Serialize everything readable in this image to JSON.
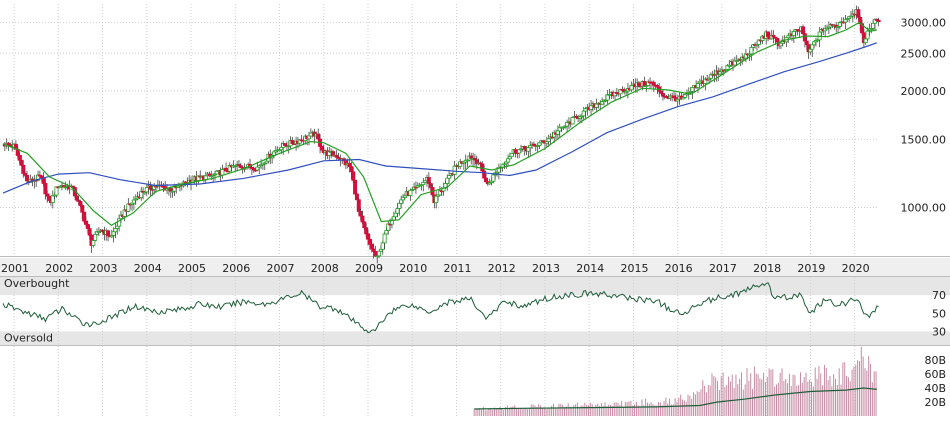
{
  "chart_data": [
    {
      "type": "candlestick",
      "panel": "price",
      "scale": "log",
      "ylim": [
        750,
        3350
      ],
      "y_ticks": [
        {
          "value": 1000,
          "label": "1000.00"
        },
        {
          "value": 1500,
          "label": "1500.00"
        },
        {
          "value": 2000,
          "label": "2000.00"
        },
        {
          "value": 2500,
          "label": "2500.00"
        },
        {
          "value": 3000,
          "label": "3000.00"
        }
      ],
      "x_range": [
        2000.75,
        2020.55
      ],
      "x_ticks": [
        {
          "value": 2001,
          "label": "2001"
        },
        {
          "value": 2002,
          "label": "2002"
        },
        {
          "value": 2003,
          "label": "2003"
        },
        {
          "value": 2004,
          "label": "2004"
        },
        {
          "value": 2005,
          "label": "2005"
        },
        {
          "value": 2006,
          "label": "2006"
        },
        {
          "value": 2007,
          "label": "2007"
        },
        {
          "value": 2008,
          "label": "2008"
        },
        {
          "value": 2009,
          "label": "2009"
        },
        {
          "value": 2010,
          "label": "2010"
        },
        {
          "value": 2011,
          "label": "2011"
        },
        {
          "value": 2012,
          "label": "2012"
        },
        {
          "value": 2013,
          "label": "2013"
        },
        {
          "value": 2014,
          "label": "2014"
        },
        {
          "value": 2015,
          "label": "2015"
        },
        {
          "value": 2016,
          "label": "2016"
        },
        {
          "value": 2017,
          "label": "2017"
        },
        {
          "value": 2018,
          "label": "2018"
        },
        {
          "value": 2019,
          "label": "2019"
        },
        {
          "value": 2020,
          "label": "2020"
        }
      ],
      "close_path": [
        [
          2000.75,
          1460
        ],
        [
          2001.0,
          1440
        ],
        [
          2001.3,
          1160
        ],
        [
          2001.6,
          1200
        ],
        [
          2001.8,
          1020
        ],
        [
          2002.0,
          1140
        ],
        [
          2002.3,
          1130
        ],
        [
          2002.5,
          1000
        ],
        [
          2002.75,
          810
        ],
        [
          2002.95,
          880
        ],
        [
          2003.2,
          840
        ],
        [
          2003.5,
          980
        ],
        [
          2003.9,
          1100
        ],
        [
          2004.2,
          1140
        ],
        [
          2004.6,
          1110
        ],
        [
          2005.0,
          1180
        ],
        [
          2005.5,
          1210
        ],
        [
          2006.0,
          1280
        ],
        [
          2006.5,
          1270
        ],
        [
          2007.0,
          1430
        ],
        [
          2007.5,
          1500
        ],
        [
          2007.8,
          1550
        ],
        [
          2008.0,
          1390
        ],
        [
          2008.3,
          1360
        ],
        [
          2008.6,
          1270
        ],
        [
          2008.8,
          960
        ],
        [
          2009.0,
          820
        ],
        [
          2009.2,
          735
        ],
        [
          2009.5,
          920
        ],
        [
          2009.8,
          1070
        ],
        [
          2010.1,
          1120
        ],
        [
          2010.35,
          1190
        ],
        [
          2010.5,
          1040
        ],
        [
          2010.75,
          1150
        ],
        [
          2011.0,
          1280
        ],
        [
          2011.3,
          1360
        ],
        [
          2011.5,
          1310
        ],
        [
          2011.7,
          1140
        ],
        [
          2011.95,
          1260
        ],
        [
          2012.3,
          1400
        ],
        [
          2012.6,
          1420
        ],
        [
          2013.0,
          1480
        ],
        [
          2013.5,
          1640
        ],
        [
          2014.0,
          1800
        ],
        [
          2014.5,
          1950
        ],
        [
          2015.0,
          2060
        ],
        [
          2015.4,
          2100
        ],
        [
          2015.7,
          1940
        ],
        [
          2016.1,
          1900
        ],
        [
          2016.5,
          2090
        ],
        [
          2017.0,
          2270
        ],
        [
          2017.5,
          2440
        ],
        [
          2018.0,
          2800
        ],
        [
          2018.3,
          2650
        ],
        [
          2018.8,
          2900
        ],
        [
          2018.95,
          2500
        ],
        [
          2019.3,
          2900
        ],
        [
          2019.6,
          2950
        ],
        [
          2020.05,
          3230
        ],
        [
          2020.15,
          2950
        ],
        [
          2020.22,
          2580
        ],
        [
          2020.32,
          2900
        ],
        [
          2020.5,
          3050
        ]
      ],
      "ma_fast_path": [
        [
          2000.75,
          1460
        ],
        [
          2001.3,
          1380
        ],
        [
          2001.8,
          1200
        ],
        [
          2002.3,
          1130
        ],
        [
          2002.8,
          980
        ],
        [
          2003.2,
          900
        ],
        [
          2003.7,
          970
        ],
        [
          2004.2,
          1100
        ],
        [
          2004.8,
          1150
        ],
        [
          2005.5,
          1190
        ],
        [
          2006.2,
          1260
        ],
        [
          2007.0,
          1380
        ],
        [
          2007.7,
          1480
        ],
        [
          2008.0,
          1470
        ],
        [
          2008.5,
          1380
        ],
        [
          2008.9,
          1200
        ],
        [
          2009.3,
          920
        ],
        [
          2009.7,
          930
        ],
        [
          2010.2,
          1080
        ],
        [
          2010.8,
          1130
        ],
        [
          2011.3,
          1280
        ],
        [
          2011.8,
          1250
        ],
        [
          2012.3,
          1290
        ],
        [
          2013.0,
          1420
        ],
        [
          2013.8,
          1660
        ],
        [
          2014.5,
          1870
        ],
        [
          2015.2,
          2030
        ],
        [
          2015.8,
          2010
        ],
        [
          2016.3,
          1960
        ],
        [
          2017.0,
          2200
        ],
        [
          2017.8,
          2520
        ],
        [
          2018.4,
          2700
        ],
        [
          2018.9,
          2770
        ],
        [
          2019.4,
          2760
        ],
        [
          2019.8,
          2870
        ],
        [
          2020.1,
          3000
        ],
        [
          2020.35,
          2850
        ],
        [
          2020.5,
          2870
        ]
      ],
      "ma_slow_path": [
        [
          2000.75,
          1090
        ],
        [
          2001.4,
          1170
        ],
        [
          2002.0,
          1220
        ],
        [
          2002.7,
          1230
        ],
        [
          2003.4,
          1180
        ],
        [
          2004.2,
          1140
        ],
        [
          2005.2,
          1150
        ],
        [
          2006.2,
          1190
        ],
        [
          2007.2,
          1250
        ],
        [
          2008.0,
          1320
        ],
        [
          2008.8,
          1330
        ],
        [
          2009.4,
          1280
        ],
        [
          2010.2,
          1260
        ],
        [
          2011.0,
          1240
        ],
        [
          2011.6,
          1230
        ],
        [
          2012.2,
          1210
        ],
        [
          2012.8,
          1250
        ],
        [
          2013.6,
          1390
        ],
        [
          2014.4,
          1560
        ],
        [
          2015.2,
          1690
        ],
        [
          2016.0,
          1820
        ],
        [
          2016.8,
          1930
        ],
        [
          2017.6,
          2080
        ],
        [
          2018.4,
          2240
        ],
        [
          2019.2,
          2380
        ],
        [
          2019.8,
          2500
        ],
        [
          2020.3,
          2610
        ],
        [
          2020.5,
          2660
        ]
      ],
      "colors": {
        "up": "#22a022",
        "down": "#d40f3c",
        "wick": "#444444",
        "ma_fast": "#22a022",
        "ma_slow": "#2f4fbe",
        "grid": "#cfcfcf"
      }
    },
    {
      "type": "line",
      "panel": "oscillator",
      "ylim": [
        15,
        90
      ],
      "y_ticks": [
        {
          "value": 70,
          "label": "70"
        },
        {
          "value": 50,
          "label": "50"
        },
        {
          "value": 30,
          "label": "30"
        }
      ],
      "bands": [
        {
          "label": "Overbought",
          "from": 70,
          "to": 90
        },
        {
          "label": "Oversold",
          "from": 15,
          "to": 30
        }
      ],
      "path": [
        [
          2000.75,
          60
        ],
        [
          2001.2,
          52
        ],
        [
          2001.7,
          44
        ],
        [
          2002.1,
          55
        ],
        [
          2002.5,
          40
        ],
        [
          2002.8,
          38
        ],
        [
          2003.2,
          45
        ],
        [
          2003.7,
          58
        ],
        [
          2004.2,
          52
        ],
        [
          2004.7,
          54
        ],
        [
          2005.2,
          60
        ],
        [
          2005.7,
          57
        ],
        [
          2006.2,
          63
        ],
        [
          2006.7,
          60
        ],
        [
          2007.2,
          68
        ],
        [
          2007.5,
          72
        ],
        [
          2007.9,
          58
        ],
        [
          2008.3,
          55
        ],
        [
          2008.7,
          40
        ],
        [
          2009.1,
          28
        ],
        [
          2009.5,
          52
        ],
        [
          2009.9,
          60
        ],
        [
          2010.4,
          52
        ],
        [
          2010.8,
          62
        ],
        [
          2011.3,
          66
        ],
        [
          2011.7,
          44
        ],
        [
          2012.1,
          64
        ],
        [
          2012.5,
          57
        ],
        [
          2013.0,
          66
        ],
        [
          2013.5,
          70
        ],
        [
          2014.0,
          72
        ],
        [
          2014.5,
          70
        ],
        [
          2015.0,
          66
        ],
        [
          2015.5,
          64
        ],
        [
          2015.8,
          55
        ],
        [
          2016.1,
          48
        ],
        [
          2016.5,
          62
        ],
        [
          2017.0,
          68
        ],
        [
          2017.5,
          74
        ],
        [
          2018.0,
          84
        ],
        [
          2018.2,
          66
        ],
        [
          2018.8,
          70
        ],
        [
          2018.95,
          49
        ],
        [
          2019.3,
          63
        ],
        [
          2019.7,
          60
        ],
        [
          2020.05,
          66
        ],
        [
          2020.2,
          52
        ],
        [
          2020.3,
          44
        ],
        [
          2020.45,
          54
        ],
        [
          2020.5,
          56
        ]
      ],
      "color": "#1f5e3a"
    },
    {
      "type": "bar",
      "panel": "volume",
      "ylim": [
        0,
        100
      ],
      "y_ticks": [
        {
          "value": 80,
          "label": "80B"
        },
        {
          "value": 60,
          "label": "60B"
        },
        {
          "value": 40,
          "label": "40B"
        },
        {
          "value": 20,
          "label": "20B"
        }
      ],
      "x_start": 2011.4,
      "x_end": 2020.5,
      "volume_path": [
        [
          2011.4,
          10
        ],
        [
          2012.0,
          12
        ],
        [
          2013.0,
          14
        ],
        [
          2014.0,
          16
        ],
        [
          2015.0,
          18
        ],
        [
          2016.0,
          22
        ],
        [
          2016.8,
          48
        ],
        [
          2017.5,
          52
        ],
        [
          2018.0,
          58
        ],
        [
          2018.5,
          60
        ],
        [
          2019.0,
          55
        ],
        [
          2019.5,
          58
        ],
        [
          2020.0,
          62
        ],
        [
          2020.15,
          95
        ],
        [
          2020.25,
          78
        ],
        [
          2020.35,
          65
        ],
        [
          2020.5,
          58
        ]
      ],
      "avg_path": [
        [
          2011.4,
          10
        ],
        [
          2012.5,
          11
        ],
        [
          2014.0,
          12
        ],
        [
          2015.5,
          13
        ],
        [
          2016.5,
          15
        ],
        [
          2016.9,
          20
        ],
        [
          2017.5,
          24
        ],
        [
          2018.2,
          30
        ],
        [
          2019.0,
          35
        ],
        [
          2019.8,
          37
        ],
        [
          2020.2,
          40
        ],
        [
          2020.5,
          38
        ]
      ],
      "colors": {
        "bar": "#c78aa3",
        "line": "#1f5e3a"
      }
    }
  ]
}
